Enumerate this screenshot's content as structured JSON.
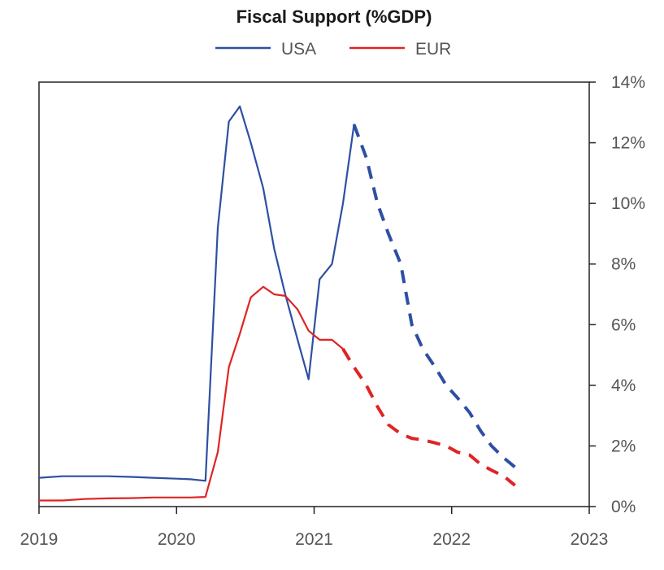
{
  "chart_data": {
    "type": "line",
    "title": "Fiscal Support (%GDP)",
    "xlabel": "",
    "ylabel": "",
    "xlim": [
      2019,
      2023
    ],
    "ylim": [
      0,
      14
    ],
    "x_ticks": [
      2019,
      2020,
      2021,
      2022,
      2023
    ],
    "x_tick_labels": [
      "2019",
      "2020",
      "2021",
      "2022",
      "2023"
    ],
    "y_ticks": [
      0,
      2,
      4,
      6,
      8,
      10,
      12,
      14
    ],
    "y_tick_labels": [
      "0%",
      "2%",
      "4%",
      "6%",
      "8%",
      "10%",
      "12%",
      "14%"
    ],
    "y_axis_side": "right",
    "legend_position": "top-center",
    "series": [
      {
        "name": "USA",
        "color": "#2E4FA3",
        "actual": [
          [
            2019.0,
            0.95
          ],
          [
            2019.17,
            1.0
          ],
          [
            2019.33,
            1.0
          ],
          [
            2019.5,
            1.0
          ],
          [
            2019.67,
            0.98
          ],
          [
            2019.83,
            0.95
          ],
          [
            2020.0,
            0.92
          ],
          [
            2020.1,
            0.9
          ],
          [
            2020.21,
            0.85
          ],
          [
            2020.3,
            9.2
          ],
          [
            2020.38,
            12.7
          ],
          [
            2020.46,
            13.2
          ],
          [
            2020.54,
            12.0
          ],
          [
            2020.63,
            10.5
          ],
          [
            2020.71,
            8.5
          ],
          [
            2020.79,
            7.0
          ],
          [
            2020.88,
            5.5
          ],
          [
            2020.96,
            4.2
          ],
          [
            2021.04,
            7.5
          ],
          [
            2021.13,
            8.0
          ],
          [
            2021.21,
            10.0
          ],
          [
            2021.29,
            12.6
          ]
        ],
        "projected": [
          [
            2021.29,
            12.6
          ],
          [
            2021.38,
            11.5
          ],
          [
            2021.46,
            10.0
          ],
          [
            2021.54,
            9.0
          ],
          [
            2021.63,
            8.0
          ],
          [
            2021.71,
            6.0
          ],
          [
            2021.79,
            5.2
          ],
          [
            2021.88,
            4.6
          ],
          [
            2021.96,
            4.0
          ],
          [
            2022.04,
            3.6
          ],
          [
            2022.13,
            3.1
          ],
          [
            2022.21,
            2.5
          ],
          [
            2022.29,
            2.0
          ],
          [
            2022.38,
            1.6
          ],
          [
            2022.46,
            1.3
          ]
        ]
      },
      {
        "name": "EUR",
        "color": "#E02424",
        "actual": [
          [
            2019.0,
            0.2
          ],
          [
            2019.17,
            0.2
          ],
          [
            2019.33,
            0.25
          ],
          [
            2019.5,
            0.27
          ],
          [
            2019.67,
            0.28
          ],
          [
            2019.83,
            0.3
          ],
          [
            2020.0,
            0.3
          ],
          [
            2020.1,
            0.3
          ],
          [
            2020.21,
            0.32
          ],
          [
            2020.3,
            1.8
          ],
          [
            2020.38,
            4.6
          ],
          [
            2020.46,
            5.7
          ],
          [
            2020.54,
            6.9
          ],
          [
            2020.63,
            7.25
          ],
          [
            2020.71,
            7.0
          ],
          [
            2020.79,
            6.95
          ],
          [
            2020.88,
            6.5
          ],
          [
            2020.96,
            5.8
          ],
          [
            2021.04,
            5.5
          ],
          [
            2021.13,
            5.5
          ],
          [
            2021.21,
            5.2
          ]
        ],
        "projected": [
          [
            2021.21,
            5.2
          ],
          [
            2021.29,
            4.6
          ],
          [
            2021.38,
            4.0
          ],
          [
            2021.46,
            3.3
          ],
          [
            2021.54,
            2.7
          ],
          [
            2021.63,
            2.4
          ],
          [
            2021.71,
            2.25
          ],
          [
            2021.79,
            2.2
          ],
          [
            2021.88,
            2.1
          ],
          [
            2021.96,
            2.0
          ],
          [
            2022.04,
            1.8
          ],
          [
            2022.13,
            1.7
          ],
          [
            2022.21,
            1.4
          ],
          [
            2022.29,
            1.2
          ],
          [
            2022.38,
            1.0
          ],
          [
            2022.46,
            0.7
          ]
        ]
      }
    ]
  }
}
